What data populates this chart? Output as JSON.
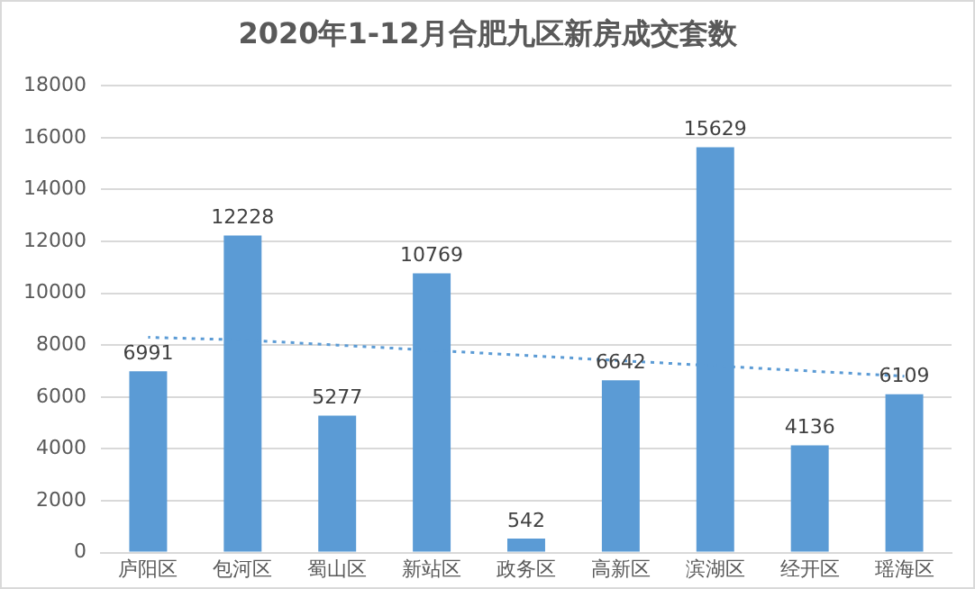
{
  "chart_data": {
    "type": "bar",
    "title": "2020年1-12月合肥九区新房成交套数",
    "categories": [
      "庐阳区",
      "包河区",
      "蜀山区",
      "新站区",
      "政务区",
      "高新区",
      "滨湖区",
      "经开区",
      "瑶海区"
    ],
    "series": [
      {
        "color": "#5b9bd5",
        "values": [
          6991,
          12228,
          5277,
          10769,
          542,
          6642,
          15629,
          4136,
          6109
        ],
        "value_labels": [
          "6991",
          "12228",
          "5277",
          "10769",
          "542",
          "6642",
          "15629",
          "4136",
          "6109"
        ]
      },
      {
        "type": "line",
        "color": "#5b9bd5",
        "line_style": "dotted",
        "marker": "none",
        "values": [
          8300,
          8200,
          8000,
          7800,
          7600,
          7400,
          7200,
          7000,
          6800
        ]
      }
    ],
    "ylim": [
      0,
      18000
    ],
    "yticks": [
      0,
      2000,
      4000,
      6000,
      8000,
      10000,
      12000,
      14000,
      16000,
      18000
    ],
    "grid": "y"
  }
}
